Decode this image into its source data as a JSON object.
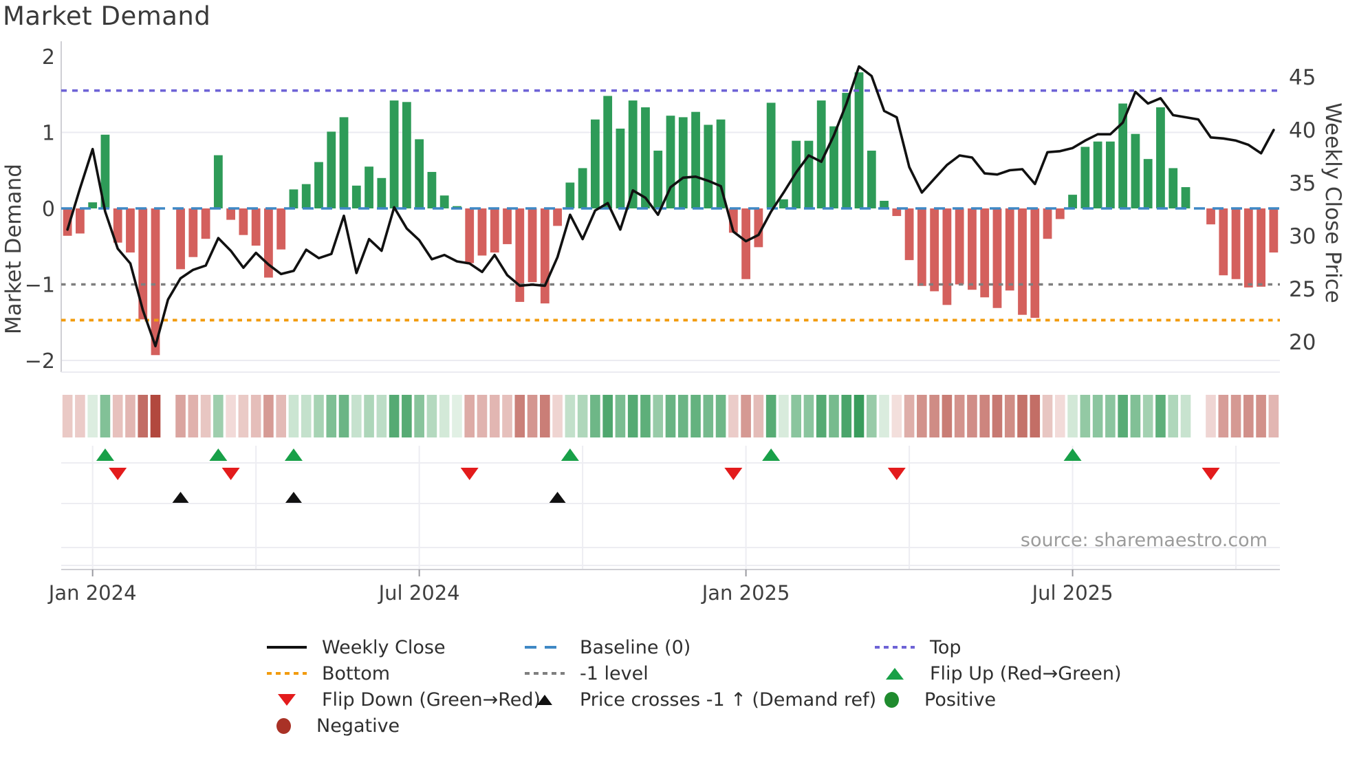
{
  "title": "Market Demand",
  "source_note": "source: sharemaestro.com",
  "axes": {
    "left_title": "Market Demand",
    "right_title": "Weekly Close Price",
    "left_ticks": [
      {
        "value": 2,
        "label": "2"
      },
      {
        "value": 1,
        "label": "1"
      },
      {
        "value": 0,
        "label": "0"
      },
      {
        "value": -1,
        "label": "−1"
      },
      {
        "value": -2,
        "label": "−2"
      }
    ],
    "right_ticks": [
      {
        "value": 45,
        "label": "45"
      },
      {
        "value": 40,
        "label": "40"
      },
      {
        "value": 35,
        "label": "35"
      },
      {
        "value": 30,
        "label": "30"
      },
      {
        "value": 25,
        "label": "25"
      },
      {
        "value": 20,
        "label": "20"
      }
    ],
    "x_ticks": [
      {
        "slot": 3,
        "label": "Jan 2024"
      },
      {
        "slot": 29,
        "label": "Jul 2024"
      },
      {
        "slot": 55,
        "label": "Jan 2025"
      },
      {
        "slot": 81,
        "label": "Jul 2025"
      }
    ]
  },
  "colors": {
    "bar_positive": "#2e9b58",
    "bar_negative": "#d4605d",
    "price_line": "#111111",
    "baseline": "#3f88c5",
    "top_level": "#6e63d6",
    "bottom_level": "#f29b0d",
    "minus1_level": "#7f7f7f",
    "flip_up": "#18a048",
    "flip_down": "#e31b1c",
    "price_cross": "#111111",
    "positive_dot": "#1f8b2e",
    "negative_dot": "#a93226",
    "grid": "#ebebf1",
    "spine": "#cfcfd4",
    "tick_text": "#3f3f3f",
    "source_text": "#9b9b9b",
    "title_text": "#3a3a3a"
  },
  "chart_data": {
    "type": "bar",
    "description": "Weekly market-demand oscillator bars with weekly close price line, week-color heatmap strip and flip/cross event markers. Weekly slots from mid-Dec 2023 to mid-Oct 2025; null = missing week.",
    "x_axis_tick_labels": [
      "Jan 2024",
      "Jul 2024",
      "Jan 2025",
      "Jul 2025"
    ],
    "ylabel_left": "Market Demand",
    "ylabel_right": "Weekly Close Price",
    "ylim_demand": [
      -2.2,
      2.2
    ],
    "ylim_price_ticks": [
      20,
      45
    ],
    "levels": {
      "top": 1.55,
      "baseline": 0,
      "minus1": -1,
      "bottom": -1.47
    },
    "series": [
      {
        "name": "Market Demand (bars)",
        "values": [
          -0.36,
          -0.33,
          0.08,
          0.97,
          -0.45,
          -0.58,
          -1.46,
          -1.93,
          null,
          -0.8,
          -0.64,
          -0.4,
          0.7,
          -0.15,
          -0.35,
          -0.49,
          -0.91,
          -0.54,
          0.25,
          0.32,
          0.61,
          1.01,
          1.2,
          0.3,
          0.55,
          0.4,
          1.42,
          1.4,
          0.91,
          0.48,
          0.17,
          0.03,
          -0.72,
          -0.62,
          -0.58,
          -0.47,
          -1.23,
          -0.97,
          -1.25,
          -0.23,
          0.34,
          0.53,
          1.17,
          1.48,
          1.05,
          1.42,
          1.33,
          0.76,
          1.22,
          1.2,
          1.27,
          1.1,
          1.17,
          -0.32,
          -0.93,
          -0.51,
          1.39,
          0.12,
          0.89,
          0.89,
          1.42,
          1.08,
          1.52,
          1.79,
          0.76,
          0.1,
          -0.1,
          -0.68,
          -1.02,
          -1.09,
          -1.27,
          -1.0,
          -1.07,
          -1.17,
          -1.31,
          -1.08,
          -1.4,
          -1.44,
          -0.4,
          -0.14,
          0.18,
          0.81,
          0.88,
          0.88,
          1.38,
          0.98,
          0.65,
          1.33,
          0.53,
          0.28,
          null,
          -0.21,
          -0.88,
          -0.93,
          -1.04,
          -1.03,
          -0.58
        ]
      },
      {
        "name": "Weekly Close (price line)",
        "values": [
          30.6,
          34.5,
          38.2,
          32.3,
          28.8,
          27.4,
          23.0,
          19.6,
          24.0,
          26.0,
          26.8,
          27.2,
          29.8,
          28.6,
          27.0,
          28.4,
          27.3,
          26.4,
          26.7,
          28.7,
          27.9,
          28.3,
          31.9,
          26.5,
          29.7,
          28.6,
          32.7,
          30.7,
          29.6,
          27.8,
          28.2,
          27.6,
          27.4,
          26.6,
          28.2,
          26.3,
          25.3,
          25.4,
          25.3,
          28.0,
          32.0,
          29.7,
          32.4,
          33.1,
          30.6,
          34.3,
          33.6,
          32.0,
          34.6,
          35.5,
          35.6,
          35.2,
          34.7,
          30.4,
          29.5,
          30.1,
          32.3,
          34.1,
          36.0,
          37.6,
          37.0,
          39.5,
          42.5,
          46.0,
          45.1,
          41.8,
          41.2,
          36.5,
          34.1,
          35.4,
          36.7,
          37.6,
          37.4,
          35.9,
          35.8,
          36.2,
          36.3,
          34.9,
          37.9,
          38.0,
          38.3,
          39.0,
          39.6,
          39.6,
          40.7,
          43.6,
          42.5,
          43.0,
          41.4,
          41.2,
          41.0,
          39.3,
          39.2,
          39.0,
          38.6,
          37.8,
          40.0
        ]
      }
    ],
    "heatmap": "weekly strip, same demand values color-mapped red(neg)/green(pos), blank for missing weeks",
    "markers": {
      "flip_up_slots": [
        4,
        13,
        19,
        41,
        57,
        81
      ],
      "flip_down_slots": [
        5,
        14,
        33,
        54,
        67,
        92
      ],
      "price_cross_slots": [
        10,
        19,
        40
      ]
    }
  },
  "legend": {
    "items": [
      {
        "col": 1,
        "row": 1,
        "marker": "line-solid",
        "label": "Weekly Close"
      },
      {
        "col": 2,
        "row": 1,
        "marker": "dash-blue",
        "label": "Baseline (0)"
      },
      {
        "col": 3,
        "row": 1,
        "marker": "dot-purple",
        "label": "Top"
      },
      {
        "col": 1,
        "row": 2,
        "marker": "dot-orange",
        "label": "Bottom"
      },
      {
        "col": 2,
        "row": 2,
        "marker": "dot-gray",
        "label": "-1 level"
      },
      {
        "col": 3,
        "row": 2,
        "marker": "tri-up-green",
        "label": "Flip Up (Red→Green)"
      },
      {
        "col": 1,
        "row": 3,
        "marker": "tri-down-red",
        "label": "Flip Down (Green→Red)"
      },
      {
        "col": 2,
        "row": 3,
        "marker": "tri-up-black",
        "label": "Price crosses -1 ↑ (Demand ref)"
      },
      {
        "col": 3,
        "row": 3,
        "marker": "circle-green",
        "label": "Positive"
      },
      {
        "col": 1,
        "row": 4,
        "marker": "circle-red",
        "label": "Negative"
      }
    ]
  }
}
